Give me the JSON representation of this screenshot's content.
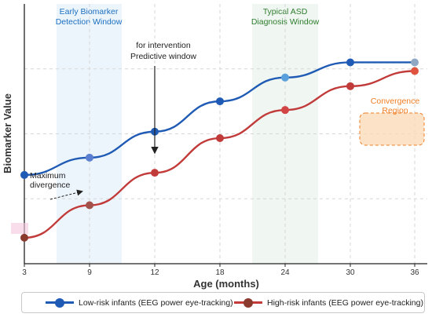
{
  "chart_data": {
    "type": "line",
    "title": "",
    "xlabel": "Age (months)",
    "ylabel": "Biomarker Value",
    "categories": [
      "3",
      "9",
      "12",
      "18",
      "24",
      "30",
      "36"
    ],
    "series": [
      {
        "name": "Low-risk infants (EEG power eye-tracking)",
        "color": "#1f5bb5",
        "values": [
          2.05,
          2.45,
          3.05,
          3.75,
          4.3,
          4.65,
          4.65
        ]
      },
      {
        "name": "High-risk infants (EEG power eye-tracking)",
        "color": "#c23b3b",
        "values": [
          0.6,
          1.35,
          2.1,
          2.9,
          3.55,
          4.1,
          4.45
        ]
      }
    ],
    "ylim": [
      0,
      6
    ],
    "grid": true,
    "legend": "bottom",
    "regions": [
      {
        "label_line1": "Early Biomarker",
        "label_line2": "Detection Window",
        "color": "#1a6fc0"
      },
      {
        "label_line1": "Typical ASD",
        "label_line2": "Diagnosis Window",
        "color": "#2f7d2f"
      }
    ],
    "annotations": {
      "intervention": {
        "line1": "for intervention",
        "line2": "Predictive window"
      },
      "divergence": {
        "line1": "Maximum",
        "line2": "divergence"
      },
      "convergence": {
        "line1": "Convergence",
        "line2": "Region",
        "color": "#f07d22"
      }
    }
  }
}
